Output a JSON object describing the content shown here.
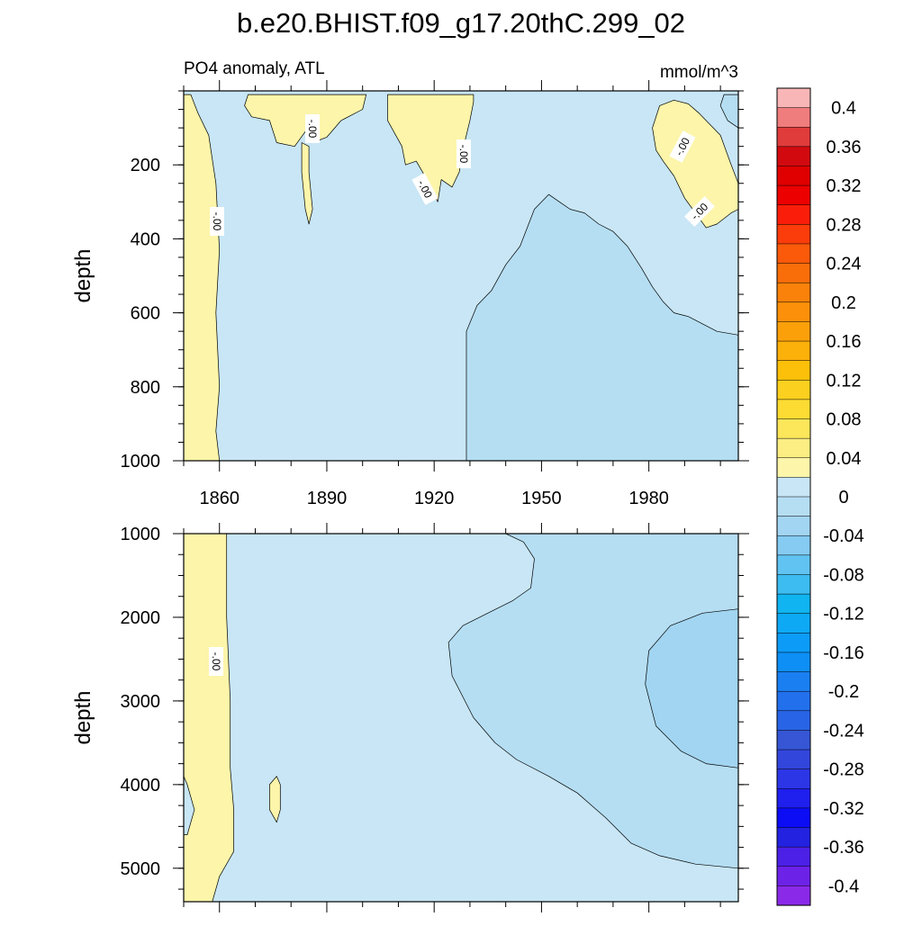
{
  "chart_data": {
    "type": "heatmap",
    "title": "b.e20.BHIST.f09_g17.20thC.299_02",
    "left_subtitle": "PO4 anomaly, ATL",
    "right_subtitle": "mmol/m^3",
    "ylabel": "depth",
    "xlim": [
      1850,
      2005
    ],
    "x_ticks": [
      "1860",
      "1890",
      "1920",
      "1950",
      "1980"
    ],
    "contour_label": "-.00",
    "upper_panel": {
      "ylim": [
        0,
        1000
      ],
      "y_ticks": [
        "200",
        "400",
        "600",
        "800",
        "1000"
      ],
      "background_level": "-0.02",
      "regions": [
        {
          "level": "0.02",
          "desc": "positive strip 1850-1860, full depth",
          "points": [
            [
              1850,
              10
            ],
            [
              1850,
              1000
            ],
            [
              1860,
              1000
            ],
            [
              1859,
              920
            ],
            [
              1860,
              800
            ],
            [
              1859,
              600
            ],
            [
              1860,
              430
            ],
            [
              1859,
              250
            ],
            [
              1857,
              120
            ],
            [
              1854,
              60
            ],
            [
              1852,
              10
            ]
          ]
        },
        {
          "level": "0.02",
          "desc": "positive patch near surface 1868-1900",
          "points": [
            [
              1868,
              10
            ],
            [
              1867,
              40
            ],
            [
              1869,
              70
            ],
            [
              1874,
              80
            ],
            [
              1876,
              140
            ],
            [
              1881,
              150
            ],
            [
              1884,
              110
            ],
            [
              1886,
              140
            ],
            [
              1890,
              125
            ],
            [
              1894,
              80
            ],
            [
              1900,
              50
            ],
            [
              1901,
              10
            ]
          ]
        },
        {
          "level": "0.02",
          "desc": "positive tongue 1883-1885",
          "points": [
            [
              1883,
              140
            ],
            [
              1883,
              220
            ],
            [
              1884,
              320
            ],
            [
              1885,
              360
            ],
            [
              1886,
              320
            ],
            [
              1885,
              220
            ],
            [
              1885,
              150
            ]
          ]
        },
        {
          "level": "0.02",
          "desc": "positive patch 1907-1931",
          "points": [
            [
              1907,
              10
            ],
            [
              1907,
              80
            ],
            [
              1911,
              150
            ],
            [
              1912,
              200
            ],
            [
              1915,
              190
            ],
            [
              1918,
              240
            ],
            [
              1921,
              300
            ],
            [
              1922,
              240
            ],
            [
              1925,
              260
            ],
            [
              1927,
              220
            ],
            [
              1928,
              160
            ],
            [
              1930,
              80
            ],
            [
              1931,
              30
            ],
            [
              1931,
              10
            ]
          ]
        },
        {
          "level": "0.02",
          "desc": "positive patch 1981-2000",
          "points": [
            [
              1983,
              40
            ],
            [
              1981,
              100
            ],
            [
              1982,
              160
            ],
            [
              1984,
              190
            ],
            [
              1987,
              230
            ],
            [
              1990,
              290
            ],
            [
              1993,
              330
            ],
            [
              1996,
              370
            ],
            [
              1999,
              360
            ],
            [
              2003,
              330
            ],
            [
              2005,
              320
            ],
            [
              2005,
              250
            ],
            [
              2003,
              200
            ],
            [
              2000,
              120
            ],
            [
              1997,
              90
            ],
            [
              1994,
              60
            ],
            [
              1991,
              35
            ],
            [
              1987,
              25
            ]
          ]
        },
        {
          "level": "-0.06",
          "desc": "negative region 1929-2005, depth 300-1000",
          "points": [
            [
              1929,
              1000
            ],
            [
              1929,
              850
            ],
            [
              1929,
              650
            ],
            [
              1932,
              580
            ],
            [
              1936,
              540
            ],
            [
              1940,
              470
            ],
            [
              1944,
              420
            ],
            [
              1948,
              320
            ],
            [
              1952,
              280
            ],
            [
              1955,
              300
            ],
            [
              1958,
              320
            ],
            [
              1962,
              330
            ],
            [
              1966,
              360
            ],
            [
              1970,
              380
            ],
            [
              1974,
              420
            ],
            [
              1978,
              480
            ],
            [
              1981,
              530
            ],
            [
              1984,
              570
            ],
            [
              1987,
              600
            ],
            [
              1991,
              610
            ],
            [
              1995,
              630
            ],
            [
              1999,
              650
            ],
            [
              2005,
              660
            ],
            [
              2005,
              1000
            ]
          ]
        },
        {
          "level": "-0.06",
          "desc": "negative spot near surface 2000-2005",
          "points": [
            [
              2001,
              10
            ],
            [
              2000,
              40
            ],
            [
              2002,
              80
            ],
            [
              2005,
              100
            ],
            [
              2005,
              10
            ]
          ]
        }
      ]
    },
    "lower_panel": {
      "ylim": [
        1000,
        5400
      ],
      "y_ticks": [
        "1000",
        "2000",
        "3000",
        "4000",
        "5000"
      ],
      "background_level": "-0.02",
      "regions": [
        {
          "level": "0.02",
          "desc": "positive strip 1850-1862, full depth",
          "points": [
            [
              1850,
              1000
            ],
            [
              1850,
              3900
            ],
            [
              1851,
              4000
            ],
            [
              1853,
              4300
            ],
            [
              1851,
              4600
            ],
            [
              1850,
              4600
            ],
            [
              1850,
              5400
            ],
            [
              1858,
              5400
            ],
            [
              1860,
              5100
            ],
            [
              1864,
              4800
            ],
            [
              1864,
              4300
            ],
            [
              1863,
              3800
            ],
            [
              1863,
              3000
            ],
            [
              1862,
              2000
            ],
            [
              1862,
              1000
            ]
          ]
        },
        {
          "level": "0.02",
          "desc": "positive spot 1874-1877 near 4200 m",
          "points": [
            [
              1874,
              4000
            ],
            [
              1874,
              4300
            ],
            [
              1876,
              4450
            ],
            [
              1877,
              4300
            ],
            [
              1877,
              4000
            ],
            [
              1876,
              3900
            ]
          ]
        },
        {
          "level": "-0.06",
          "desc": "negative region 1924-2005, 1000-5000 m",
          "points": [
            [
              1940,
              1000
            ],
            [
              1945,
              1100
            ],
            [
              1948,
              1300
            ],
            [
              1947,
              1650
            ],
            [
              1942,
              1800
            ],
            [
              1935,
              1950
            ],
            [
              1928,
              2100
            ],
            [
              1924,
              2300
            ],
            [
              1925,
              2700
            ],
            [
              1931,
              3200
            ],
            [
              1937,
              3500
            ],
            [
              1943,
              3700
            ],
            [
              1952,
              3900
            ],
            [
              1960,
              4100
            ],
            [
              1968,
              4400
            ],
            [
              1975,
              4700
            ],
            [
              1983,
              4850
            ],
            [
              1993,
              4950
            ],
            [
              2005,
              5000
            ],
            [
              2005,
              1000
            ]
          ]
        },
        {
          "level": "-0.1",
          "desc": "deeper negative region 1979-2005, 1900-3800 m",
          "points": [
            [
              2005,
              1900
            ],
            [
              1995,
              1950
            ],
            [
              1986,
              2100
            ],
            [
              1980,
              2400
            ],
            [
              1979,
              2800
            ],
            [
              1982,
              3300
            ],
            [
              1989,
              3600
            ],
            [
              1996,
              3750
            ],
            [
              2005,
              3800
            ]
          ]
        }
      ]
    },
    "colorbar": {
      "labels": [
        "0.4",
        "0.36",
        "0.32",
        "0.28",
        "0.24",
        "0.2",
        "0.16",
        "0.12",
        "0.08",
        "0.04",
        "0",
        "-0.04",
        "-0.08",
        "-0.12",
        "-0.16",
        "-0.2",
        "-0.24",
        "-0.28",
        "-0.32",
        "-0.36",
        "-0.4"
      ],
      "colors": [
        "#f9b6b6",
        "#f07d7d",
        "#e03c3c",
        "#d20a10",
        "#e00000",
        "#ec0000",
        "#fa1e0a",
        "#fa3d0a",
        "#fa5a0a",
        "#fa6e0a",
        "#fa820a",
        "#fc900a",
        "#fca00a",
        "#fcb00a",
        "#fcc00a",
        "#fcd01e",
        "#fcdc32",
        "#fce65a",
        "#fcee82",
        "#fcf5aa",
        "#c8e6f5",
        "#b5def3",
        "#a2d5f1",
        "#85cbf2",
        "#61c3f1",
        "#3cbcf0",
        "#10b4f0",
        "#0ea9f5",
        "#0c9cf8",
        "#0d8ff5",
        "#1a80f2",
        "#2370ed",
        "#2864e6",
        "#3656d6",
        "#3346dc",
        "#2c36e6",
        "#1f1fee",
        "#0c0cf5",
        "#2222e0",
        "#4c20e6",
        "#6d22e8",
        "#8a2ae8"
      ]
    }
  }
}
